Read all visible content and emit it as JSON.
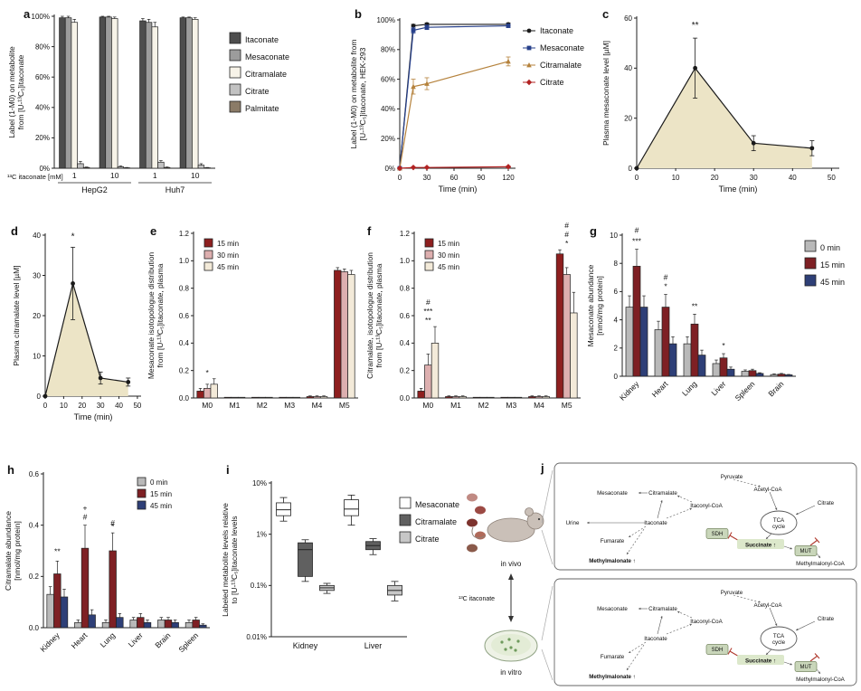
{
  "panel_letters": {
    "a": "a",
    "b": "b",
    "c": "c",
    "d": "d",
    "e": "e",
    "f": "f",
    "g": "g",
    "h": "h",
    "i": "i",
    "j": "j"
  },
  "chart_data": [
    {
      "panel": "a",
      "type": "bar",
      "ylabel": "Label (1-M0) on metabolite\nfrom [U-¹³C₅]itaconate",
      "xlabel_left": "¹³C itaconate [mM]",
      "ylim": [
        0,
        100
      ],
      "yticks": [
        {
          "v": 0,
          "label": "0%"
        },
        {
          "v": 20,
          "label": "20%"
        },
        {
          "v": 40,
          "label": "40%"
        },
        {
          "v": 60,
          "label": "60%"
        },
        {
          "v": 80,
          "label": "80%"
        },
        {
          "v": 100,
          "label": "100%"
        }
      ],
      "categories": [
        "1",
        "10",
        "1",
        "10"
      ],
      "cell_groups": [
        {
          "label": "HepG2",
          "from": 0,
          "to": 1
        },
        {
          "label": "Huh7",
          "from": 2,
          "to": 3
        }
      ],
      "series": [
        {
          "name": "Itaconate",
          "color": "#4d4d4d",
          "values": [
            99,
            99.5,
            97,
            99
          ],
          "errors": [
            1,
            0.5,
            1.5,
            0.5
          ]
        },
        {
          "name": "Mesaconate",
          "color": "#9c9c9c",
          "values": [
            99,
            99.5,
            96,
            99
          ],
          "errors": [
            1,
            0.5,
            2,
            0.5
          ]
        },
        {
          "name": "Citramalate",
          "color": "#f7f3e8",
          "values": [
            96,
            98.5,
            93,
            98
          ],
          "errors": [
            2,
            1,
            3,
            1
          ]
        },
        {
          "name": "Citrate",
          "color": "#c2c2c2",
          "values": [
            3,
            1,
            4,
            2
          ],
          "errors": [
            1.5,
            0.5,
            1,
            1
          ]
        },
        {
          "name": "Palmitate",
          "color": "#8b7b67",
          "values": [
            0.5,
            0.3,
            0.5,
            0.3
          ],
          "errors": [
            0.3,
            0.2,
            0.3,
            0.2
          ]
        }
      ]
    },
    {
      "panel": "b",
      "type": "line",
      "ylabel": "Label (1-M0) on metabolite from\n[U-¹³C₅]itaconate, HEK-293",
      "xlabel": "Time (min)",
      "ylim": [
        0,
        100
      ],
      "yticks": [
        {
          "v": 0,
          "label": "0%"
        },
        {
          "v": 20,
          "label": "20%"
        },
        {
          "v": 40,
          "label": "40%"
        },
        {
          "v": 60,
          "label": "60%"
        },
        {
          "v": 80,
          "label": "80%"
        },
        {
          "v": 100,
          "label": "100%"
        }
      ],
      "xlim": [
        0,
        128
      ],
      "xticks": [
        {
          "v": 0,
          "label": "0"
        },
        {
          "v": 30,
          "label": "30"
        },
        {
          "v": 60,
          "label": "60"
        },
        {
          "v": 90,
          "label": "90"
        },
        {
          "v": 120,
          "label": "120"
        }
      ],
      "x": [
        0,
        15,
        30,
        120
      ],
      "series": [
        {
          "name": "Itaconate",
          "color": "#1a1a1a",
          "marker": "circle",
          "values": [
            0,
            96,
            97,
            97
          ],
          "errors": [
            0,
            1,
            1,
            1
          ]
        },
        {
          "name": "Mesaconate",
          "color": "#27408b",
          "marker": "square",
          "values": [
            0,
            93,
            95,
            96
          ],
          "errors": [
            0,
            2,
            1.5,
            1
          ]
        },
        {
          "name": "Citramalate",
          "color": "#b5823c",
          "marker": "triangle",
          "values": [
            0,
            55,
            57,
            72
          ],
          "errors": [
            0,
            5,
            4,
            3
          ]
        },
        {
          "name": "Citrate",
          "color": "#b22222",
          "marker": "diamond",
          "values": [
            0,
            0.5,
            0.5,
            1
          ],
          "errors": [
            0,
            0.3,
            0.3,
            0.5
          ]
        }
      ]
    },
    {
      "panel": "c",
      "type": "area",
      "ylabel": "Plasma mesaconate level [µM]",
      "xlabel": "Time (min)",
      "ylim": [
        0,
        60
      ],
      "yticks": [
        {
          "v": 0,
          "label": "0"
        },
        {
          "v": 20,
          "label": "20"
        },
        {
          "v": 40,
          "label": "40"
        },
        {
          "v": 60,
          "label": "60"
        }
      ],
      "xlim": [
        0,
        52
      ],
      "xticks": [
        {
          "v": 0,
          "label": "0"
        },
        {
          "v": 10,
          "label": "10"
        },
        {
          "v": 20,
          "label": "20"
        },
        {
          "v": 30,
          "label": "30"
        },
        {
          "v": 40,
          "label": "40"
        },
        {
          "v": 50,
          "label": "50"
        }
      ],
      "x": [
        0,
        15,
        30,
        45
      ],
      "fill": "#ece4c6",
      "series": [
        {
          "name": "Plasma mesaconate",
          "color": "#1a1a1a",
          "marker": "circle",
          "values": [
            0,
            40,
            10,
            8
          ],
          "errors": [
            0,
            12,
            3,
            3
          ]
        }
      ],
      "annotations": [
        {
          "text": "**",
          "x": 15,
          "y": 56
        }
      ]
    },
    {
      "panel": "d",
      "type": "area",
      "ylabel": "Plasma citramalate level [µM]",
      "xlabel": "Time (min)",
      "ylim": [
        0,
        40
      ],
      "yticks": [
        {
          "v": 0,
          "label": "0"
        },
        {
          "v": 10,
          "label": "10"
        },
        {
          "v": 20,
          "label": "20"
        },
        {
          "v": 30,
          "label": "30"
        },
        {
          "v": 40,
          "label": "40"
        }
      ],
      "xlim": [
        0,
        52
      ],
      "xticks": [
        {
          "v": 0,
          "label": "0"
        },
        {
          "v": 10,
          "label": "10"
        },
        {
          "v": 20,
          "label": "20"
        },
        {
          "v": 30,
          "label": "30"
        },
        {
          "v": 40,
          "label": "40"
        },
        {
          "v": 50,
          "label": "50"
        }
      ],
      "x": [
        0,
        15,
        30,
        45
      ],
      "fill": "#ece4c6",
      "series": [
        {
          "name": "Plasma citramalate",
          "color": "#1a1a1a",
          "marker": "circle",
          "values": [
            0,
            28,
            4.5,
            3.5
          ],
          "errors": [
            0,
            9,
            1.5,
            1
          ]
        }
      ],
      "annotations": [
        {
          "text": "*",
          "x": 15,
          "y": 39
        }
      ]
    },
    {
      "panel": "e",
      "type": "bar",
      "ylabel": "Mesaconate isotopologue distribution\nfrom [U-¹³C₅]itaconate, plasma",
      "ylim": [
        0,
        1.2
      ],
      "yticks": [
        {
          "v": 0,
          "label": "0.0"
        },
        {
          "v": 0.2,
          "label": "0.2"
        },
        {
          "v": 0.4,
          "label": "0.4"
        },
        {
          "v": 0.6,
          "label": "0.6"
        },
        {
          "v": 0.8,
          "label": "0.8"
        },
        {
          "v": 1,
          "label": "1.0"
        },
        {
          "v": 1.2,
          "label": "1.2"
        }
      ],
      "categories": [
        "M0",
        "M1",
        "M2",
        "M3",
        "M4",
        "M5"
      ],
      "series": [
        {
          "name": "15 min",
          "color": "#8e1f1f",
          "values": [
            0.05,
            0.005,
            0.005,
            0.005,
            0.01,
            0.93
          ],
          "errors": [
            0.02,
            0,
            0,
            0,
            0.005,
            0.02
          ]
        },
        {
          "name": "30 min",
          "color": "#ddafaf",
          "values": [
            0.07,
            0.005,
            0.005,
            0.005,
            0.01,
            0.92
          ],
          "errors": [
            0.03,
            0,
            0,
            0,
            0.005,
            0.02
          ]
        },
        {
          "name": "45 min",
          "color": "#f3ead9",
          "values": [
            0.1,
            0.005,
            0.005,
            0.005,
            0.01,
            0.9
          ],
          "errors": [
            0.04,
            0,
            0,
            0,
            0.005,
            0.03
          ]
        }
      ],
      "sig": [
        {
          "text": "*",
          "cat": 0,
          "dy": 0
        }
      ]
    },
    {
      "panel": "f",
      "type": "bar",
      "ylabel": "Citramalate, isotopologue distribution\nfrom [U-¹³C₅]itaconate, plasma",
      "ylim": [
        0,
        1.2
      ],
      "yticks": [
        {
          "v": 0,
          "label": "0.0"
        },
        {
          "v": 0.2,
          "label": "0.2"
        },
        {
          "v": 0.4,
          "label": "0.4"
        },
        {
          "v": 0.6,
          "label": "0.6"
        },
        {
          "v": 0.8,
          "label": "0.8"
        },
        {
          "v": 1,
          "label": "1.0"
        },
        {
          "v": 1.2,
          "label": "1.2"
        }
      ],
      "categories": [
        "M0",
        "M1",
        "M2",
        "M3",
        "M4",
        "M5"
      ],
      "series": [
        {
          "name": "15 min",
          "color": "#8e1f1f",
          "values": [
            0.05,
            0.01,
            0.005,
            0.005,
            0.01,
            1.05
          ],
          "errors": [
            0.02,
            0.005,
            0,
            0,
            0.005,
            0.03
          ]
        },
        {
          "name": "30 min",
          "color": "#ddafaf",
          "values": [
            0.24,
            0.01,
            0.005,
            0.005,
            0.01,
            0.9
          ],
          "errors": [
            0.08,
            0.005,
            0,
            0,
            0.005,
            0.05
          ]
        },
        {
          "name": "45 min",
          "color": "#f3ead9",
          "values": [
            0.4,
            0.01,
            0.005,
            0.005,
            0.01,
            0.62
          ],
          "errors": [
            0.12,
            0.005,
            0,
            0,
            0.005,
            0.15
          ]
        }
      ],
      "sig": [
        {
          "text": "**",
          "cat": 0,
          "dy": 0
        },
        {
          "text": "***",
          "cat": 0,
          "dy": 10
        },
        {
          "text": "#",
          "cat": 0,
          "dy": 20
        },
        {
          "text": "*",
          "cat": 5,
          "dy": 0
        },
        {
          "text": "#",
          "cat": 5,
          "dy": 10
        },
        {
          "text": "#",
          "cat": 5,
          "dy": 20
        }
      ]
    },
    {
      "panel": "g",
      "type": "bar",
      "ylabel": "Mesaconate abundance\n[nmol/mg protein]",
      "ylim": [
        0,
        10
      ],
      "yticks": [
        {
          "v": 0,
          "label": "0"
        },
        {
          "v": 2,
          "label": "2"
        },
        {
          "v": 4,
          "label": "4"
        },
        {
          "v": 6,
          "label": "6"
        },
        {
          "v": 8,
          "label": "8"
        },
        {
          "v": 10,
          "label": "10"
        }
      ],
      "categories": [
        "Kidney",
        "Heart",
        "Lung",
        "Liver",
        "Spleen",
        "Brain"
      ],
      "rotate_xticks": true,
      "series": [
        {
          "name": "0 min",
          "color": "#b9b9b9",
          "values": [
            4.9,
            3.3,
            2.3,
            0.9,
            0.35,
            0.12
          ],
          "errors": [
            0.8,
            0.6,
            0.5,
            0.25,
            0.1,
            0.05
          ]
        },
        {
          "name": "15 min",
          "color": "#7e2024",
          "values": [
            7.8,
            4.9,
            3.7,
            1.3,
            0.4,
            0.15
          ],
          "errors": [
            1.2,
            0.9,
            0.7,
            0.3,
            0.1,
            0.05
          ]
        },
        {
          "name": "45 min",
          "color": "#2e3f77",
          "values": [
            4.9,
            2.3,
            1.5,
            0.5,
            0.2,
            0.1
          ],
          "errors": [
            0.8,
            0.5,
            0.35,
            0.15,
            0.05,
            0.03
          ]
        }
      ],
      "sig": [
        {
          "text": "#",
          "cat": 0,
          "dy": 14
        },
        {
          "text": "***",
          "cat": 0,
          "dy": 2
        },
        {
          "text": "#",
          "cat": 1,
          "dy": 12
        },
        {
          "text": "*",
          "cat": 1,
          "dy": 2
        },
        {
          "text": "**",
          "cat": 2,
          "dy": 2
        },
        {
          "text": "*",
          "cat": 3,
          "dy": 2
        }
      ]
    },
    {
      "panel": "h",
      "type": "bar",
      "ylabel": "Citramalate abundance\n[nmol/mg protein]",
      "ylim": [
        0,
        0.6
      ],
      "yticks": [
        {
          "v": 0,
          "label": "0.0"
        },
        {
          "v": 0.2,
          "label": "0.2"
        },
        {
          "v": 0.4,
          "label": "0.4"
        },
        {
          "v": 0.6,
          "label": "0.6"
        }
      ],
      "categories": [
        "Kidney",
        "Heart",
        "Lung",
        "Liver",
        "Brain",
        "Spleen"
      ],
      "rotate_xticks": true,
      "series": [
        {
          "name": "0 min",
          "color": "#b9b9b9",
          "values": [
            0.13,
            0.02,
            0.02,
            0.03,
            0.03,
            0.02
          ],
          "errors": [
            0.03,
            0.01,
            0.01,
            0.01,
            0.01,
            0.01
          ]
        },
        {
          "name": "15 min",
          "color": "#7e2024",
          "values": [
            0.21,
            0.31,
            0.3,
            0.04,
            0.03,
            0.03
          ],
          "errors": [
            0.05,
            0.09,
            0.07,
            0.015,
            0.01,
            0.01
          ]
        },
        {
          "name": "45 min",
          "color": "#2e3f77",
          "values": [
            0.12,
            0.05,
            0.04,
            0.02,
            0.02,
            0.01
          ],
          "errors": [
            0.03,
            0.02,
            0.015,
            0.01,
            0.01,
            0.005
          ]
        }
      ],
      "sig": [
        {
          "text": "**",
          "cat": 0,
          "dy": 4
        },
        {
          "text": "+",
          "cat": 1,
          "series": 1,
          "dy": 12
        },
        {
          "text": "#",
          "cat": 1,
          "dy": 2
        },
        {
          "text": "#",
          "cat": 2,
          "dy": 4
        },
        {
          "text": "*",
          "cat": 2,
          "series": 1,
          "dy": 0
        }
      ]
    },
    {
      "panel": "i",
      "type": "box",
      "ylabel": "Labeled metabolite levels relative\nto [U-¹³C₅]itaconate levels",
      "yscale": "log",
      "ylim": [
        0.01,
        10
      ],
      "yticks": [
        {
          "v": 0.01,
          "label": "0.01%"
        },
        {
          "v": 0.1,
          "label": "0.1%"
        },
        {
          "v": 1,
          "label": "1%"
        },
        {
          "v": 10,
          "label": "10%"
        }
      ],
      "categories": [
        "Kidney",
        "Liver"
      ],
      "series": [
        {
          "name": "Mesaconate",
          "color": "#ffffff",
          "boxes": [
            {
              "lo": 1.8,
              "q1": 2.3,
              "med": 3,
              "q3": 4.1,
              "hi": 5.2
            },
            {
              "lo": 1.5,
              "q1": 2.3,
              "med": 3.1,
              "q3": 4.7,
              "hi": 5.8
            }
          ]
        },
        {
          "name": "Citramalate",
          "color": "#606060",
          "boxes": [
            {
              "lo": 0.12,
              "q1": 0.15,
              "med": 0.5,
              "q3": 0.68,
              "hi": 0.78
            },
            {
              "lo": 0.4,
              "q1": 0.5,
              "med": 0.6,
              "q3": 0.72,
              "hi": 0.82
            }
          ]
        },
        {
          "name": "Citrate",
          "color": "#c7c7c7",
          "boxes": [
            {
              "lo": 0.07,
              "q1": 0.08,
              "med": 0.09,
              "q3": 0.1,
              "hi": 0.11
            },
            {
              "lo": 0.05,
              "q1": 0.065,
              "med": 0.08,
              "q3": 0.1,
              "hi": 0.12
            }
          ]
        }
      ]
    },
    {
      "panel": "j",
      "type": "diagram",
      "in_vivo_label": "in vivo",
      "in_vitro_label": "in vitro",
      "tracer_label": "¹³C itaconate",
      "nodes_in_vivo": [
        "Pyruvate",
        "Acetyl-CoA",
        "Mesaconate",
        "Citramalate",
        "Itaconyl-CoA",
        "Citrate",
        "TCA cycle",
        "Fumarate",
        "Itaconate",
        "Urine",
        "SDH",
        "Succinate ↑",
        "MUT",
        "Methylmalonyl-CoA",
        "Methylmalonate ↑"
      ],
      "nodes_in_vitro": [
        "Pyruvate",
        "Acetyl-CoA",
        "Mesaconate",
        "Citramalate",
        "Itaconyl-CoA",
        "Citrate",
        "TCA cycle",
        "Fumarate",
        "Itaconate",
        "SDH",
        "Succinate ↑",
        "MUT",
        "Methylmalonyl-CoA",
        "Methylmalonate ↑"
      ]
    }
  ]
}
